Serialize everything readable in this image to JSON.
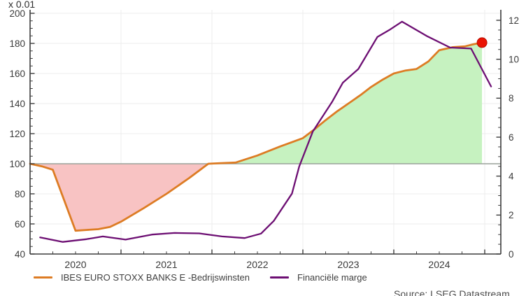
{
  "axis_multiplier_note": "x 0.01",
  "source_note": "Source: LSEG Datastream",
  "colors": {
    "orange_line": "#dd7c24",
    "purple_line": "#6d0f73",
    "red_dot": "#ea1403",
    "red_dot_edge": "#b80d00",
    "fill_above": "#c6f2c0",
    "fill_below": "#f8c3c3",
    "baseline_line": "#9aa29a",
    "grid_line": "#ececec",
    "axis_line": "#3c3c3c",
    "tick_label": "#3a3a3a"
  },
  "chart_data": {
    "type": "line",
    "title": "",
    "baseline": 100,
    "x_axis": {
      "start": 2020,
      "ticks": [
        2020,
        2021,
        2022,
        2023,
        2024
      ],
      "grid_years": [
        2021,
        2022,
        2023,
        2024,
        2025
      ],
      "major_tick_years": [
        2021,
        2022,
        2023,
        2024,
        2025
      ],
      "minor_step": 0.25
    },
    "left_axis": {
      "range": [
        40,
        200
      ],
      "ticks": [
        40,
        60,
        80,
        100,
        120,
        140,
        160,
        180,
        200
      ],
      "minor_step": 5,
      "label": "x 0.01"
    },
    "right_axis": {
      "range": [
        0,
        12
      ],
      "ticks": [
        0,
        2,
        4,
        6,
        8,
        10,
        12
      ],
      "minor_step": 0.5
    },
    "series": [
      {
        "name": "IBES EURO STOXX BANKS E -Bedrijswinsten",
        "axis": "left",
        "color": "#dd7c24",
        "width": 2.8,
        "fill_to_baseline": true,
        "end_marker": true,
        "x": [
          2020.0,
          2020.13,
          2020.25,
          2020.5,
          2020.62,
          2020.75,
          2020.88,
          2021.0,
          2021.25,
          2021.5,
          2021.75,
          2021.96,
          2022.1,
          2022.26,
          2022.5,
          2022.75,
          2023.0,
          2023.13,
          2023.25,
          2023.38,
          2023.5,
          2023.63,
          2023.75,
          2023.88,
          2024.0,
          2024.13,
          2024.25,
          2024.38,
          2024.5,
          2024.65,
          2024.78,
          2024.88,
          2024.97
        ],
        "values": [
          100,
          98.3,
          96,
          55.5,
          56,
          56.5,
          58,
          61.5,
          70.5,
          80,
          90.5,
          100,
          100.4,
          100.8,
          105.5,
          111.5,
          117,
          123,
          129,
          135,
          140,
          145.5,
          151,
          156,
          160,
          162,
          163,
          168,
          175.5,
          177.5,
          178,
          179.5,
          180.5
        ]
      },
      {
        "name": "Financiële marge",
        "axis": "right",
        "color": "#6d0f73",
        "width": 2.3,
        "fill_to_baseline": false,
        "end_marker": false,
        "x": [
          2020.11,
          2020.36,
          2020.62,
          2020.8,
          2021.05,
          2021.34,
          2021.59,
          2021.86,
          2022.11,
          2022.36,
          2022.54,
          2022.68,
          2022.88,
          2022.96,
          2023.11,
          2023.32,
          2023.44,
          2023.61,
          2023.82,
          2023.95,
          2024.09,
          2024.36,
          2024.62,
          2024.85,
          2025.07
        ],
        "values": [
          0.85,
          0.62,
          0.76,
          0.9,
          0.74,
          1.0,
          1.08,
          1.06,
          0.9,
          0.82,
          1.05,
          1.7,
          3.1,
          4.5,
          6.3,
          7.8,
          8.8,
          9.5,
          11.15,
          11.5,
          11.93,
          11.2,
          10.6,
          10.55,
          8.6
        ]
      }
    ],
    "legend": [
      {
        "label": "IBES EURO STOXX BANKS E -Bedrijswinsten",
        "color": "#dd7c24"
      },
      {
        "label": "Financiële marge",
        "color": "#6d0f73"
      }
    ],
    "grid": true,
    "legend_position": "bottom"
  }
}
